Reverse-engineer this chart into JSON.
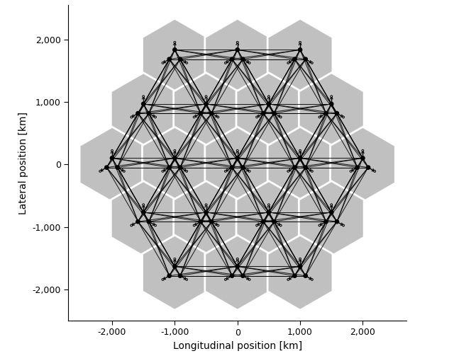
{
  "xlim": [
    -2700,
    2700
  ],
  "ylim": [
    -2500,
    2550
  ],
  "xlabel": "Longitudinal position [km]",
  "ylabel": "Lateral position [km]",
  "hex_color": "#c0c0c0",
  "hex_edge_color": "white",
  "edge_color": "black",
  "edge_lw": 0.7,
  "background_color": "white",
  "tick_labels_x": [
    "-2,000",
    "-1,000",
    "0",
    "1,000",
    "2,000"
  ],
  "tick_values_x": [
    -2000,
    -1000,
    0,
    1000,
    2000
  ],
  "tick_labels_y": [
    "-2,000",
    "-1,000",
    "0",
    "1,000",
    "2,000"
  ],
  "tick_values_y": [
    -2000,
    -1000,
    0,
    1000,
    2000
  ],
  "inter_site_distance": 1000,
  "figsize": [
    6.4,
    5.03
  ],
  "dpi": 100
}
